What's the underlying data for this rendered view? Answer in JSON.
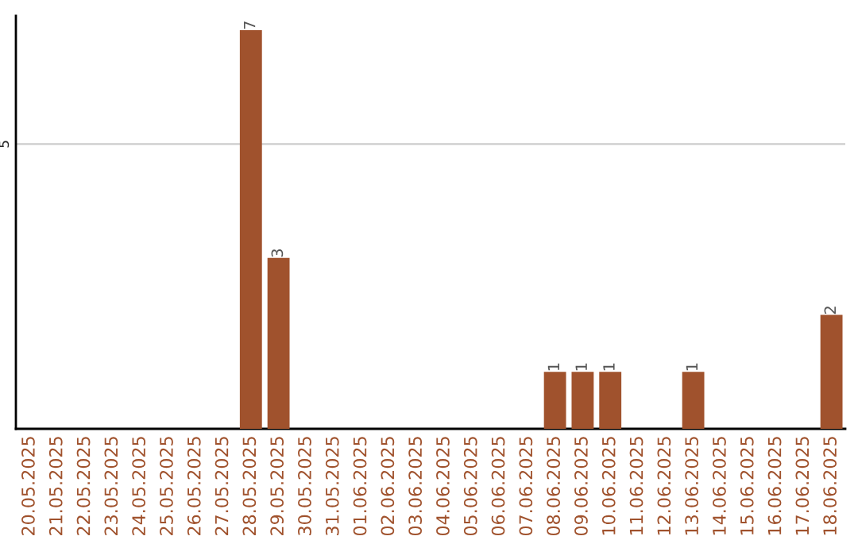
{
  "chart_data": {
    "type": "bar",
    "categories": [
      "20.05.2025",
      "21.05.2025",
      "22.05.2025",
      "23.05.2025",
      "24.05.2025",
      "25.05.2025",
      "26.05.2025",
      "27.05.2025",
      "28.05.2025",
      "29.05.2025",
      "30.05.2025",
      "31.05.2025",
      "01.06.2025",
      "02.06.2025",
      "03.06.2025",
      "04.06.2025",
      "05.06.2025",
      "06.06.2025",
      "07.06.2025",
      "08.06.2025",
      "09.06.2025",
      "10.06.2025",
      "11.06.2025",
      "12.06.2025",
      "13.06.2025",
      "14.06.2025",
      "15.06.2025",
      "16.06.2025",
      "17.06.2025",
      "18.06.2025"
    ],
    "values": [
      0,
      0,
      0,
      0,
      0,
      0,
      0,
      0,
      7,
      3,
      0,
      0,
      0,
      0,
      0,
      0,
      0,
      0,
      0,
      1,
      1,
      1,
      0,
      0,
      1,
      0,
      0,
      0,
      0,
      2
    ],
    "value_labels": [
      null,
      null,
      null,
      null,
      null,
      null,
      null,
      null,
      "7",
      "3",
      null,
      null,
      null,
      null,
      null,
      null,
      null,
      null,
      null,
      "1",
      "1",
      "1",
      null,
      null,
      "1",
      null,
      null,
      null,
      null,
      "2"
    ],
    "color": "#a0522d",
    "ylim": [
      0,
      7.25
    ],
    "yticks": [
      5
    ],
    "grid": "y",
    "legend": false
  }
}
